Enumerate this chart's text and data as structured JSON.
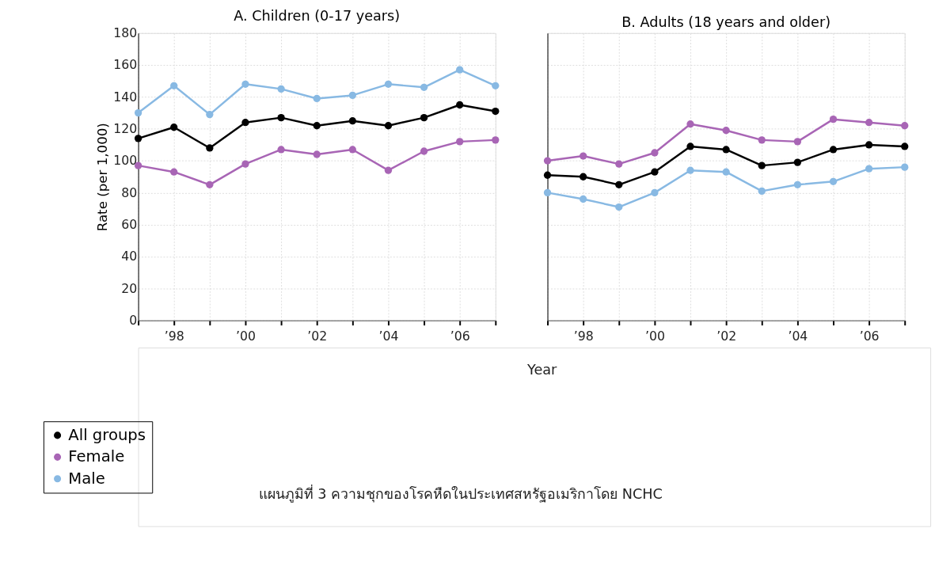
{
  "chart_data": [
    {
      "type": "line",
      "title": "A. Children (0-17 years)",
      "xlabel": "Year",
      "ylabel": "Rate (per 1,000)",
      "x": [
        1997,
        1998,
        1999,
        2000,
        2001,
        2002,
        2003,
        2004,
        2005,
        2006,
        2007
      ],
      "series": [
        {
          "name": "All groups",
          "color": "#000000",
          "values": [
            114,
            121,
            108,
            124,
            127,
            122,
            125,
            122,
            127,
            135,
            131
          ]
        },
        {
          "name": "Female",
          "color": "#a865b5",
          "values": [
            97,
            93,
            85,
            98,
            107,
            104,
            107,
            94,
            106,
            112,
            113
          ]
        },
        {
          "name": "Male",
          "color": "#88b9e3",
          "values": [
            130,
            147,
            129,
            148,
            145,
            139,
            141,
            148,
            146,
            157,
            147
          ]
        }
      ],
      "xlim": [
        1997,
        2007
      ],
      "xticks": [
        {
          "value": 1997,
          "label": null
        },
        {
          "value": 1998,
          "label": "’98"
        },
        {
          "value": 1999,
          "label": null
        },
        {
          "value": 2000,
          "label": "’00"
        },
        {
          "value": 2001,
          "label": null
        },
        {
          "value": 2002,
          "label": "’02"
        },
        {
          "value": 2003,
          "label": null
        },
        {
          "value": 2004,
          "label": "’04"
        },
        {
          "value": 2005,
          "label": null
        },
        {
          "value": 2006,
          "label": "’06"
        },
        {
          "value": 2007,
          "label": null
        }
      ],
      "ylim": [
        0,
        180
      ],
      "yticks": [
        0,
        20,
        40,
        60,
        80,
        100,
        120,
        140,
        160,
        180
      ],
      "grid": true,
      "marker": "circle",
      "legend": "bottom left",
      "annotations": [
        "แผนภูมิที่ 3 ความชุกของโรคหืดในประเทศสหรัฐอเมริกาโดย NCHC"
      ]
    },
    {
      "type": "line",
      "title": "B. Adults (18 years and older)",
      "x": [
        1997,
        1998,
        1999,
        2000,
        2001,
        2002,
        2003,
        2004,
        2005,
        2006,
        2007
      ],
      "series": [
        {
          "name": "All groups",
          "color": "#000000",
          "values": [
            91,
            90,
            85,
            93,
            109,
            107,
            97,
            99,
            107,
            110,
            109
          ]
        },
        {
          "name": "Female",
          "color": "#a865b5",
          "values": [
            100,
            103,
            98,
            105,
            123,
            119,
            113,
            112,
            126,
            124,
            122
          ]
        },
        {
          "name": "Male",
          "color": "#88b9e3",
          "values": [
            80,
            76,
            71,
            80,
            94,
            93,
            81,
            85,
            87,
            95,
            96
          ]
        }
      ],
      "xlim": [
        1997,
        2007
      ],
      "xticks": [
        {
          "value": 1997,
          "label": null
        },
        {
          "value": 1998,
          "label": "’98"
        },
        {
          "value": 1999,
          "label": null
        },
        {
          "value": 2000,
          "label": "’00"
        },
        {
          "value": 2001,
          "label": null
        },
        {
          "value": 2002,
          "label": "’02"
        },
        {
          "value": 2003,
          "label": null
        },
        {
          "value": 2004,
          "label": "’04"
        },
        {
          "value": 2005,
          "label": null
        },
        {
          "value": 2006,
          "label": "’06"
        },
        {
          "value": 2007,
          "label": null
        }
      ],
      "ylim": [
        0,
        180
      ],
      "yticks": [
        0,
        20,
        40,
        60,
        80,
        100,
        120,
        140,
        160,
        180
      ],
      "grid": true,
      "marker": "circle",
      "tick_labels": "x"
    }
  ]
}
